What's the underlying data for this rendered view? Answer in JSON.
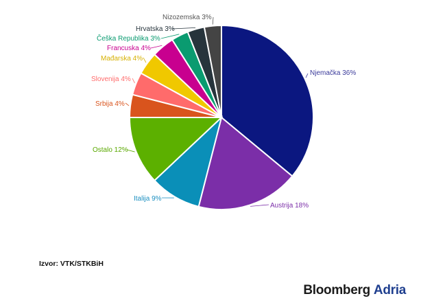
{
  "chart_data": {
    "type": "pie",
    "start_angle_deg": -90,
    "direction": "clockwise",
    "slices": [
      {
        "label": "Njemačka 36%",
        "value": 36,
        "color": "#0b1780",
        "label_color": "#3a3a9a"
      },
      {
        "label": "Austrija 18%",
        "value": 18,
        "color": "#7b2ea8",
        "label_color": "#7b2ea8"
      },
      {
        "label": "Italija 9%",
        "value": 9,
        "color": "#0a8fb8",
        "label_color": "#1b8fc0"
      },
      {
        "label": "Ostalo 12%",
        "value": 12,
        "color": "#5cb000",
        "label_color": "#5aa800"
      },
      {
        "label": "Srbija 4%",
        "value": 4,
        "color": "#d9541d",
        "label_color": "#d9541d"
      },
      {
        "label": "Slovenija 4%",
        "value": 4,
        "color": "#ff6b6b",
        "label_color": "#ff6b6b"
      },
      {
        "label": "Mađarska 4%",
        "value": 4,
        "color": "#f0c800",
        "label_color": "#d6b000"
      },
      {
        "label": "Francuska 4%",
        "value": 4,
        "color": "#c8008f",
        "label_color": "#c8008f"
      },
      {
        "label": "Češka Republika 3%",
        "value": 3,
        "color": "#0a9b70",
        "label_color": "#0a9b70"
      },
      {
        "label": "Hrvatska 3%",
        "value": 3,
        "color": "#27343c",
        "label_color": "#27343c"
      },
      {
        "label": "Nizozemska 3%",
        "value": 3,
        "color": "#444444",
        "label_color": "#555555"
      }
    ]
  },
  "source": "Izvor: VTK/STKBiH",
  "brand": {
    "main": "Bloomberg",
    "accent": "Adria"
  }
}
